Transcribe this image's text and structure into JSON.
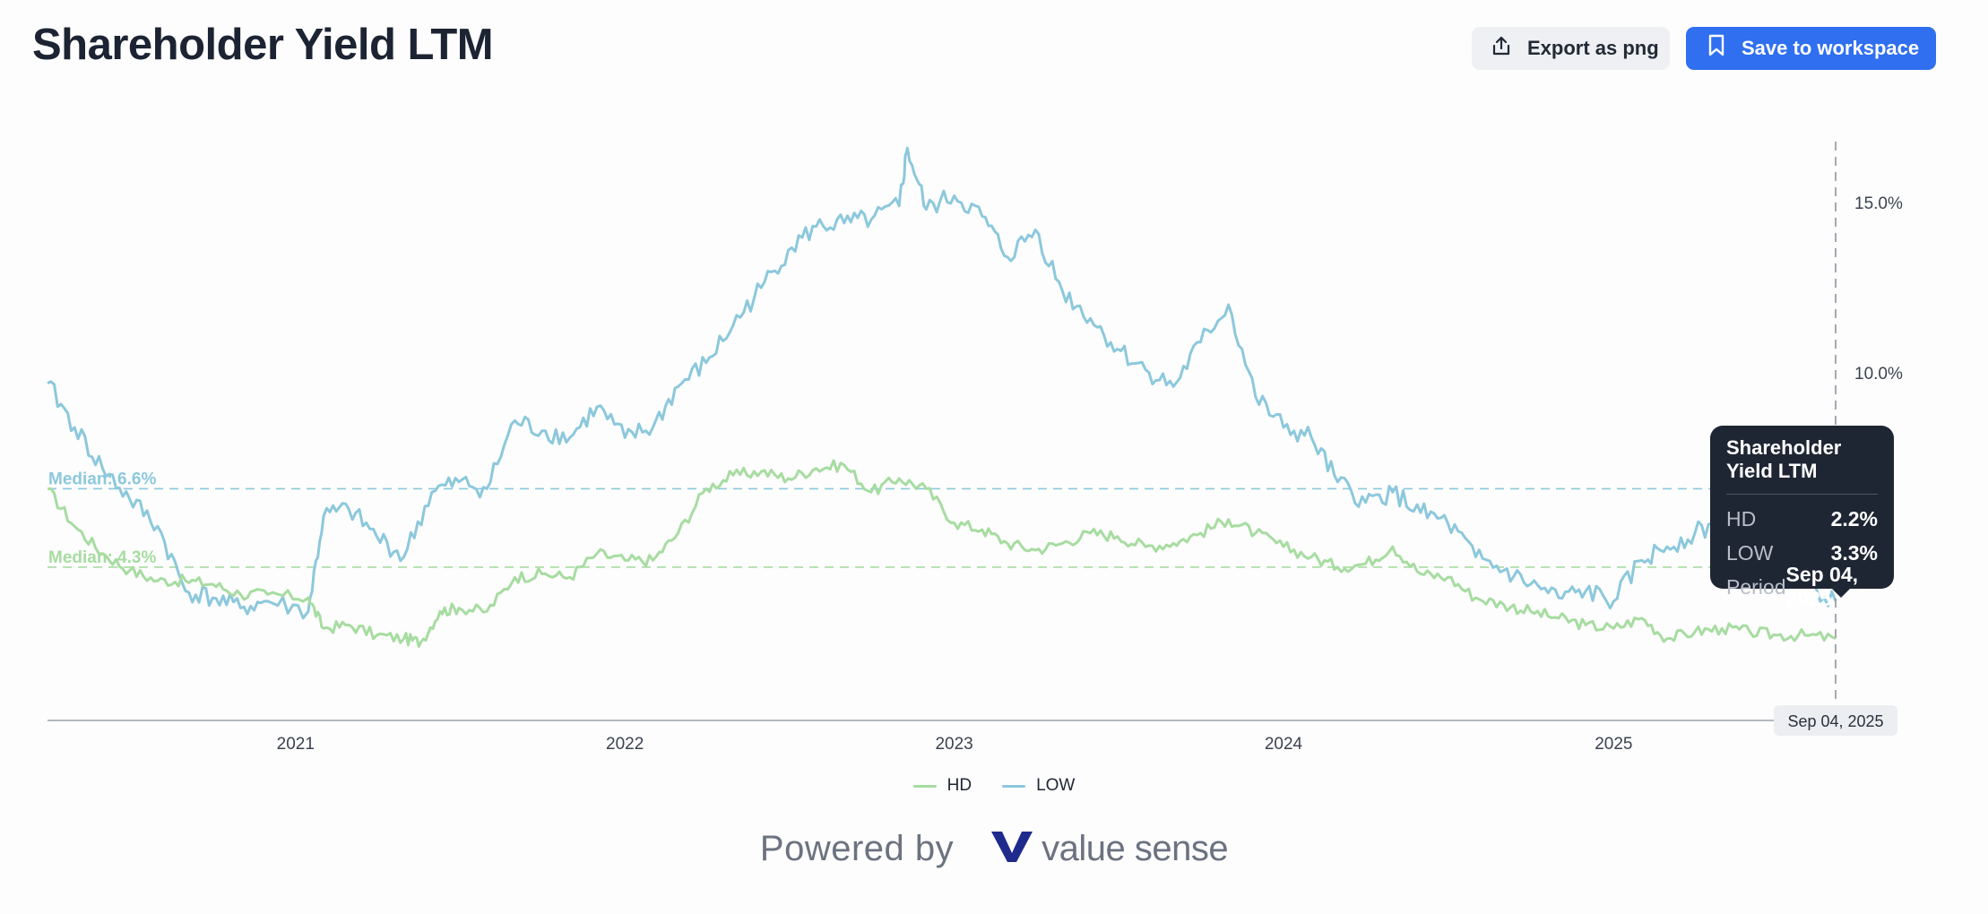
{
  "header": {
    "title": "Shareholder Yield LTM",
    "export_label": "Export as png",
    "save_label": "Save to workspace"
  },
  "tooltip": {
    "title": "Shareholder Yield LTM",
    "rows": [
      {
        "key": "HD",
        "value": "2.2%"
      },
      {
        "key": "LOW",
        "value": "3.3%"
      },
      {
        "key": "Period",
        "value": "Sep 04, 2025"
      }
    ]
  },
  "footer": {
    "powered_by": "Powered by",
    "brand": "value sense"
  },
  "colors": {
    "hd": "#a7dca1",
    "low": "#8cc8dc",
    "accent": "#2f6ff0",
    "brand_mark": "#1e2a8c"
  },
  "chart_data": {
    "type": "line",
    "title": "Shareholder Yield LTM",
    "x_ticks": [
      "2021",
      "2022",
      "2023",
      "2024",
      "2025"
    ],
    "y_ticks": [
      "10.0%",
      "15.0%"
    ],
    "y_tick_values": [
      10,
      15
    ],
    "ylim": [
      -0.2,
      17
    ],
    "xlim": [
      "2020-04-01",
      "2025-09-04"
    ],
    "grid": false,
    "legend_position": "bottom",
    "crosshair_label": "Sep 04, 2025",
    "series": [
      {
        "name": "HD",
        "color": "#a7dca1",
        "median_label": "Median: 4.3%",
        "median": 4.3,
        "points": [
          [
            "2020-04-01",
            6.6
          ],
          [
            "2020-05-01",
            5.5
          ],
          [
            "2020-06-01",
            4.7
          ],
          [
            "2020-07-01",
            4.2
          ],
          [
            "2020-08-01",
            3.9
          ],
          [
            "2020-09-01",
            3.9
          ],
          [
            "2020-10-01",
            3.8
          ],
          [
            "2020-11-01",
            3.5
          ],
          [
            "2020-12-01",
            3.5
          ],
          [
            "2021-01-15",
            3.4
          ],
          [
            "2021-02-01",
            2.5
          ],
          [
            "2021-03-01",
            2.6
          ],
          [
            "2021-04-01",
            2.3
          ],
          [
            "2021-05-01",
            2.2
          ],
          [
            "2021-05-20",
            2.1
          ],
          [
            "2021-06-10",
            3.0
          ],
          [
            "2021-07-01",
            3.1
          ],
          [
            "2021-08-01",
            3.0
          ],
          [
            "2021-09-01",
            4.0
          ],
          [
            "2021-10-01",
            4.1
          ],
          [
            "2021-11-01",
            4.0
          ],
          [
            "2021-12-01",
            4.7
          ],
          [
            "2022-01-01",
            4.5
          ],
          [
            "2022-02-01",
            4.5
          ],
          [
            "2022-03-01",
            5.3
          ],
          [
            "2022-04-01",
            6.6
          ],
          [
            "2022-05-01",
            7.0
          ],
          [
            "2022-06-01",
            7.1
          ],
          [
            "2022-07-01",
            6.9
          ],
          [
            "2022-08-01",
            7.2
          ],
          [
            "2022-09-01",
            7.3
          ],
          [
            "2022-10-01",
            6.5
          ],
          [
            "2022-11-01",
            6.9
          ],
          [
            "2022-12-01",
            6.6
          ],
          [
            "2023-01-01",
            5.6
          ],
          [
            "2023-02-01",
            5.4
          ],
          [
            "2023-03-01",
            5.0
          ],
          [
            "2023-04-01",
            4.8
          ],
          [
            "2023-05-01",
            5.0
          ],
          [
            "2023-06-01",
            5.3
          ],
          [
            "2023-07-01",
            5.2
          ],
          [
            "2023-08-01",
            4.9
          ],
          [
            "2023-09-01",
            5.0
          ],
          [
            "2023-10-01",
            5.3
          ],
          [
            "2023-11-01",
            5.7
          ],
          [
            "2023-12-01",
            5.3
          ],
          [
            "2024-01-01",
            4.9
          ],
          [
            "2024-02-01",
            4.6
          ],
          [
            "2024-03-01",
            4.3
          ],
          [
            "2024-04-01",
            4.4
          ],
          [
            "2024-05-01",
            4.9
          ],
          [
            "2024-06-01",
            4.1
          ],
          [
            "2024-07-01",
            4.0
          ],
          [
            "2024-08-01",
            3.4
          ],
          [
            "2024-09-01",
            3.2
          ],
          [
            "2024-10-01",
            3.0
          ],
          [
            "2024-11-01",
            2.8
          ],
          [
            "2024-12-01",
            2.6
          ],
          [
            "2025-01-01",
            2.5
          ],
          [
            "2025-02-01",
            2.8
          ],
          [
            "2025-03-01",
            2.2
          ],
          [
            "2025-04-01",
            2.4
          ],
          [
            "2025-05-01",
            2.5
          ],
          [
            "2025-06-01",
            2.4
          ],
          [
            "2025-07-01",
            2.3
          ],
          [
            "2025-08-01",
            2.3
          ],
          [
            "2025-09-04",
            2.2
          ]
        ]
      },
      {
        "name": "LOW",
        "color": "#8cc8dc",
        "median_label": "Median: 6.6%",
        "median": 6.6,
        "points": [
          [
            "2020-04-01",
            9.7
          ],
          [
            "2020-05-01",
            8.4
          ],
          [
            "2020-06-01",
            7.2
          ],
          [
            "2020-07-01",
            6.3
          ],
          [
            "2020-08-01",
            5.5
          ],
          [
            "2020-09-01",
            3.6
          ],
          [
            "2020-10-01",
            3.4
          ],
          [
            "2020-11-01",
            3.1
          ],
          [
            "2020-12-01",
            3.3
          ],
          [
            "2021-01-15",
            3.0
          ],
          [
            "2021-02-01",
            5.8
          ],
          [
            "2021-03-01",
            6.0
          ],
          [
            "2021-04-01",
            5.2
          ],
          [
            "2021-05-01",
            4.6
          ],
          [
            "2021-06-01",
            6.5
          ],
          [
            "2021-07-01",
            6.8
          ],
          [
            "2021-08-01",
            6.6
          ],
          [
            "2021-09-01",
            8.6
          ],
          [
            "2021-10-01",
            8.3
          ],
          [
            "2021-11-01",
            8.1
          ],
          [
            "2021-12-01",
            9.0
          ],
          [
            "2022-01-01",
            8.1
          ],
          [
            "2022-02-01",
            8.4
          ],
          [
            "2022-03-01",
            9.6
          ],
          [
            "2022-04-01",
            10.3
          ],
          [
            "2022-05-01",
            11.4
          ],
          [
            "2022-06-01",
            12.5
          ],
          [
            "2022-07-01",
            13.6
          ],
          [
            "2022-08-01",
            14.3
          ],
          [
            "2022-09-01",
            14.4
          ],
          [
            "2022-10-01",
            14.5
          ],
          [
            "2022-11-01",
            14.9
          ],
          [
            "2022-11-10",
            16.6
          ],
          [
            "2022-12-01",
            14.8
          ],
          [
            "2023-01-01",
            15.2
          ],
          [
            "2023-02-01",
            14.6
          ],
          [
            "2023-03-01",
            13.4
          ],
          [
            "2023-04-01",
            14.2
          ],
          [
            "2023-05-01",
            12.4
          ],
          [
            "2023-06-01",
            11.6
          ],
          [
            "2023-07-01",
            10.7
          ],
          [
            "2023-08-01",
            10.1
          ],
          [
            "2023-09-01",
            9.6
          ],
          [
            "2023-10-01",
            10.9
          ],
          [
            "2023-11-01",
            12.0
          ],
          [
            "2023-12-01",
            9.3
          ],
          [
            "2024-01-01",
            8.4
          ],
          [
            "2024-02-01",
            8.1
          ],
          [
            "2024-03-01",
            6.8
          ],
          [
            "2024-04-01",
            6.2
          ],
          [
            "2024-05-01",
            6.5
          ],
          [
            "2024-06-01",
            5.9
          ],
          [
            "2024-07-01",
            5.6
          ],
          [
            "2024-08-01",
            4.6
          ],
          [
            "2024-09-01",
            4.2
          ],
          [
            "2024-10-01",
            3.8
          ],
          [
            "2024-11-01",
            3.4
          ],
          [
            "2024-12-01",
            3.6
          ],
          [
            "2025-01-01",
            3.3
          ],
          [
            "2025-02-01",
            4.5
          ],
          [
            "2025-03-01",
            4.9
          ],
          [
            "2025-04-01",
            5.3
          ],
          [
            "2025-05-01",
            5.6
          ],
          [
            "2025-06-01",
            5.8
          ],
          [
            "2025-07-01",
            5.0
          ],
          [
            "2025-08-01",
            3.8
          ],
          [
            "2025-09-04",
            3.3
          ]
        ]
      }
    ]
  }
}
